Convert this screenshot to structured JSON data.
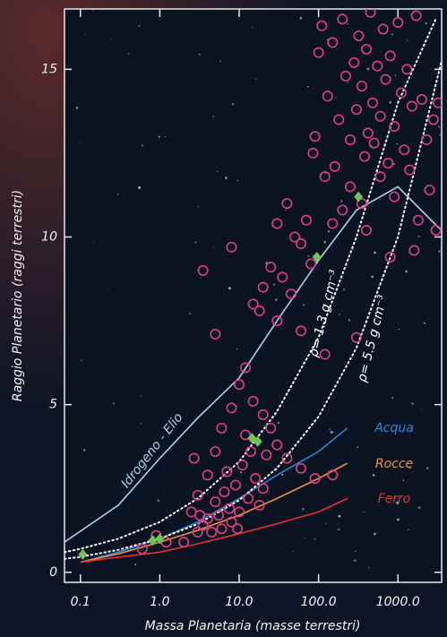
{
  "chart_data": {
    "type": "scatter",
    "xlabel": "Massa Planetaria (masse terrestri)",
    "ylabel": "Raggio Planetario (raggi terrestri)",
    "xscale": "log",
    "xlim": [
      0.063,
      3550
    ],
    "ylim": [
      -0.3,
      16.8
    ],
    "xticks": [
      0.1,
      {
        "value": 1,
        "label": "1.0"
      },
      {
        "value": 10,
        "label": "10.0"
      },
      {
        "value": 100,
        "label": "100.0"
      },
      {
        "value": 1000,
        "label": "1000.0"
      }
    ],
    "yticks": [
      0,
      5,
      10,
      15
    ],
    "series": [
      {
        "color": "#e23d84",
        "marker": "circle",
        "x": [
          100,
          110,
          130,
          150,
          180,
          200,
          220,
          250,
          280,
          300,
          320,
          350,
          380,
          400,
          420,
          450,
          480,
          500,
          550,
          600,
          650,
          700,
          750,
          800,
          900,
          1000,
          1100,
          1200,
          1300,
          1500,
          1700,
          2000,
          2300,
          2800,
          3200,
          90,
          85,
          120,
          160,
          250,
          350,
          600,
          900,
          1400,
          2500,
          3000,
          1600,
          800,
          400,
          200,
          150,
          70,
          60,
          80,
          50,
          40,
          30,
          35,
          25,
          20,
          15,
          45,
          8,
          3.5,
          5,
          18,
          30,
          60,
          120,
          300,
          1800,
          12,
          10,
          8,
          15,
          20,
          25,
          30,
          40,
          60,
          90,
          150,
          6,
          5,
          4,
          3,
          2.5,
          3.5,
          4.5,
          5.5,
          6.5,
          7.5,
          9,
          11,
          13,
          16,
          18,
          22,
          7,
          5,
          4,
          6,
          8,
          10,
          3,
          2,
          1.2,
          0.9,
          0.6,
          12,
          14,
          2.7,
          3.2,
          9.5,
          20
        ],
        "values": [
          15.5,
          16.3,
          14.2,
          15.8,
          13.5,
          16.5,
          14.8,
          12.9,
          15.2,
          13.8,
          16.0,
          14.5,
          12.4,
          15.6,
          13.1,
          16.7,
          14.0,
          12.8,
          15.1,
          13.6,
          16.2,
          14.7,
          12.2,
          15.4,
          13.3,
          16.4,
          14.3,
          12.6,
          15.0,
          13.9,
          16.6,
          14.1,
          12.9,
          13.5,
          14.0,
          13.0,
          12.5,
          11.8,
          12.1,
          11.5,
          11.0,
          11.8,
          11.2,
          12.0,
          11.4,
          10.2,
          9.6,
          9.4,
          10.2,
          10.8,
          10.4,
          10.5,
          9.8,
          9.2,
          10.0,
          11.0,
          10.4,
          8.8,
          9.1,
          8.5,
          8.0,
          8.3,
          9.7,
          9.0,
          7.1,
          7.8,
          7.5,
          7.2,
          6.5,
          7.0,
          10.5,
          6.1,
          5.6,
          4.9,
          5.1,
          4.7,
          4.3,
          3.8,
          3.4,
          3.1,
          2.8,
          2.9,
          4.3,
          3.6,
          2.9,
          2.3,
          1.8,
          1.4,
          1.2,
          1.7,
          2.4,
          1.9,
          2.6,
          3.2,
          2.2,
          2.8,
          2.0,
          3.5,
          3.0,
          2.1,
          1.6,
          1.3,
          1.5,
          1.8,
          1.2,
          0.9,
          0.9,
          1.1,
          0.7,
          4.1,
          3.6,
          3.4,
          1.7,
          1.3,
          2.5
        ]
      },
      {
        "color": "#72c25a",
        "marker": "diamond",
        "x": [
          0.107,
          0.815,
          1,
          14.5,
          17.1,
          95,
          318
        ],
        "values": [
          0.53,
          0.95,
          1,
          4.0,
          3.9,
          9.4,
          11.2
        ]
      }
    ],
    "lines": [
      {
        "name": "Idrogeno - Elio",
        "color": "#a9d4f0",
        "style": "solid",
        "x": [
          0.063,
          0.3,
          1,
          3,
          10,
          30,
          100,
          300,
          1000,
          3500
        ],
        "values": [
          0.9,
          2.0,
          3.4,
          4.6,
          5.8,
          7.5,
          9.3,
          10.8,
          11.5,
          10.2
        ]
      },
      {
        "name": "Acqua",
        "color": "#2a86d6",
        "style": "solid",
        "x": [
          0.1,
          0.3,
          1,
          3,
          10,
          30,
          100,
          230
        ],
        "values": [
          0.3,
          0.6,
          1.0,
          1.5,
          2.2,
          2.9,
          3.6,
          4.3
        ]
      },
      {
        "name": "Rocce",
        "color": "#f09040",
        "style": "solid",
        "x": [
          0.1,
          0.3,
          1,
          3,
          10,
          30,
          100,
          230
        ],
        "values": [
          0.3,
          0.55,
          0.9,
          1.25,
          1.7,
          2.2,
          2.8,
          3.25
        ]
      },
      {
        "name": "Ferro",
        "color": "#e8302e",
        "style": "solid",
        "x": [
          0.1,
          0.3,
          1,
          3,
          10,
          30,
          100,
          230
        ],
        "values": [
          0.3,
          0.45,
          0.6,
          0.85,
          1.15,
          1.45,
          1.8,
          2.2
        ]
      },
      {
        "name": "ρ= 1.3 g cm⁻³",
        "color": "#ffffff",
        "style": "dotted",
        "x": [
          0.063,
          0.1,
          0.3,
          1,
          3,
          10,
          30,
          100,
          300,
          1000,
          3000
        ],
        "values": [
          0.6,
          0.7,
          1.0,
          1.5,
          2.2,
          3.3,
          4.8,
          7.0,
          10.0,
          14.0,
          16.5
        ]
      },
      {
        "name": "ρ= 5.5 g cm⁻³",
        "color": "#ffffff",
        "style": "dotted",
        "x": [
          0.063,
          0.1,
          0.3,
          1,
          3,
          10,
          30,
          100,
          300,
          1000,
          3500
        ],
        "values": [
          0.4,
          0.46,
          0.67,
          1.0,
          1.44,
          2.15,
          3.11,
          4.64,
          6.69,
          10.0,
          15.2
        ]
      }
    ]
  }
}
